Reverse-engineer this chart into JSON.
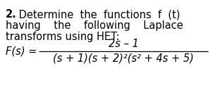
{
  "bg_color": "#ffffff",
  "text_color": "#000000",
  "bold_num": "2.",
  "rest_line1": " Determine  the  functions  f  (t)",
  "line2": "having    the    following    Laplace",
  "line3": "transforms using HET:",
  "numerator": "2s – 1",
  "denominator": "(s + 1)(s + 2)²(s² + 4s + 5)",
  "lhs": "F(s) =",
  "fontsize_main": 10.5,
  "fontsize_formula": 10.5,
  "fig_width": 3.02,
  "fig_height": 1.41,
  "dpi": 100
}
